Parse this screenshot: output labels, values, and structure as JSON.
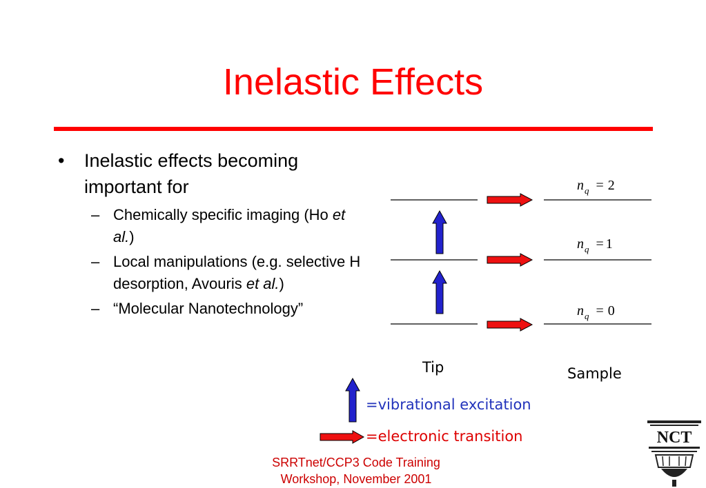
{
  "slide": {
    "title": "Inelastic Effects"
  },
  "bullets": {
    "main": "Inelastic effects becoming important for",
    "marker": "•",
    "dash": "–",
    "sub": [
      {
        "text": "Chemically specific imaging (Ho ",
        "italic": "et al.",
        "end": ")"
      },
      {
        "text": "Local manipulations (e.g. selective H desorption, Avouris ",
        "italic": "et al.",
        "end": ")"
      },
      {
        "text": "“Molecular Nanotechnology”",
        "italic": "",
        "end": ""
      }
    ]
  },
  "diagram": {
    "levels": [
      {
        "n": "n",
        "sub": "q",
        "eq": "=",
        "value": "2"
      },
      {
        "n": "n",
        "sub": "q",
        "eq": "=",
        "value": "1"
      },
      {
        "n": "n",
        "sub": "q",
        "eq": "=",
        "value": "0"
      }
    ],
    "tip_label": "Tip",
    "sample_label": "Sample",
    "legend": {
      "vibrational": "=vibrational excitation",
      "electronic": "=electronic transition"
    },
    "colors": {
      "vibrational_arrow": "#2222cc",
      "electronic_arrow": "#ee1111",
      "vibrational_text": "#2233bb",
      "electronic_text": "#dd0000"
    }
  },
  "footer": {
    "line1": "SRRTnet/CCP3 Code Training",
    "line2": "Workshop, November 2001"
  },
  "logo": {
    "text": "NCT",
    "icon": "capitol-dome-logo"
  }
}
